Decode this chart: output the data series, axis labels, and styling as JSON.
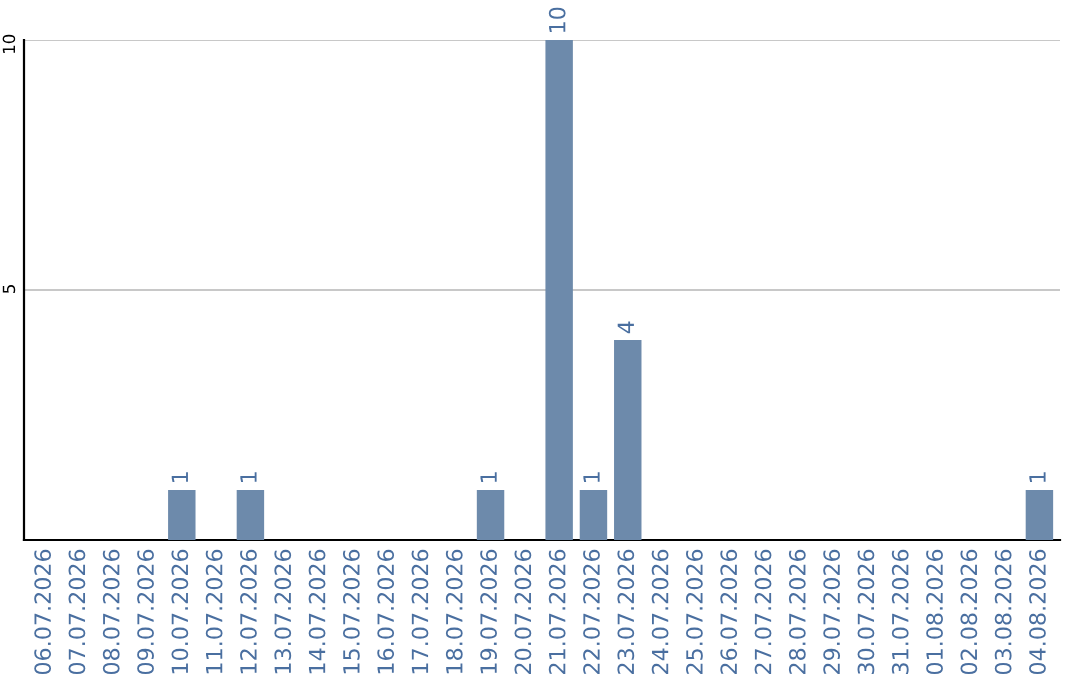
{
  "chart_data": {
    "type": "bar",
    "categories": [
      "06.07.2026",
      "07.07.2026",
      "08.07.2026",
      "09.07.2026",
      "10.07.2026",
      "11.07.2026",
      "12.07.2026",
      "13.07.2026",
      "14.07.2026",
      "15.07.2026",
      "16.07.2026",
      "17.07.2026",
      "18.07.2026",
      "19.07.2026",
      "20.07.2026",
      "21.07.2026",
      "22.07.2026",
      "23.07.2026",
      "24.07.2026",
      "25.07.2026",
      "26.07.2026",
      "27.07.2026",
      "28.07.2026",
      "29.07.2026",
      "30.07.2026",
      "31.07.2026",
      "01.08.2026",
      "02.08.2026",
      "03.08.2026",
      "04.08.2026"
    ],
    "values": [
      0,
      0,
      0,
      0,
      1,
      0,
      1,
      0,
      0,
      0,
      0,
      0,
      0,
      1,
      0,
      10,
      1,
      4,
      0,
      0,
      0,
      0,
      0,
      0,
      0,
      0,
      0,
      0,
      0,
      1
    ],
    "value_labels": [
      null,
      null,
      null,
      null,
      "1",
      null,
      "1",
      null,
      null,
      null,
      null,
      null,
      null,
      "1",
      null,
      "10",
      "1",
      "4",
      null,
      null,
      null,
      null,
      null,
      null,
      null,
      null,
      null,
      null,
      null,
      "1"
    ],
    "color": "#6d8aab",
    "ylim": [
      0,
      10
    ],
    "yticks": [
      5,
      10
    ],
    "grid": "y"
  }
}
